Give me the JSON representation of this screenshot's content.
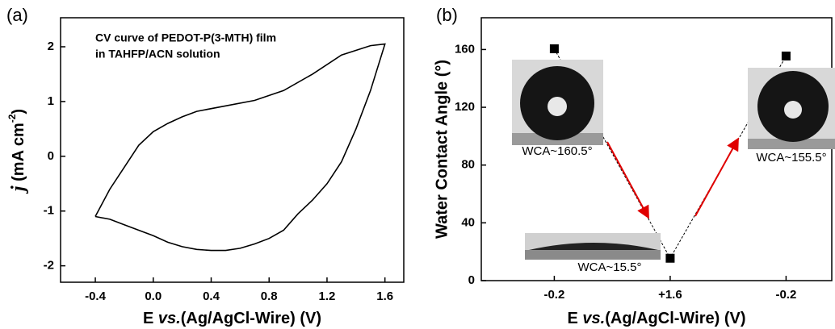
{
  "chart_data": [
    {
      "type": "line",
      "panel_label": "(a)",
      "annotations": [
        "CV curve of PEDOT-P(3-MTH) film",
        "in TAHFP/ACN solution"
      ],
      "xlabel": [
        "E ",
        "vs.",
        "(Ag/AgCl-Wire) (V)"
      ],
      "ylabel": [
        "j",
        " (mA cm",
        "-2",
        ")"
      ],
      "x": [
        -0.4,
        -0.3,
        -0.2,
        -0.1,
        0,
        0.1,
        0.2,
        0.3,
        0.5,
        0.7,
        0.9,
        1.1,
        1.3,
        1.5,
        1.6,
        1.5,
        1.4,
        1.3,
        1.2,
        1.1,
        1.0,
        0.95,
        0.9,
        0.8,
        0.7,
        0.6,
        0.5,
        0.4,
        0.3,
        0.2,
        0.1,
        0,
        -0.1,
        -0.2,
        -0.3,
        -0.4
      ],
      "series": [
        {
          "color": "#000000",
          "values": [
            -1.1,
            -0.6,
            -0.2,
            0.2,
            0.45,
            0.6,
            0.72,
            0.82,
            0.92,
            1.02,
            1.2,
            1.5,
            1.85,
            2.02,
            2.05,
            1.2,
            0.5,
            -0.1,
            -0.5,
            -0.8,
            -1.05,
            -1.2,
            -1.35,
            -1.5,
            -1.6,
            -1.68,
            -1.72,
            -1.72,
            -1.7,
            -1.65,
            -1.57,
            -1.45,
            -1.35,
            -1.25,
            -1.15,
            -1.1
          ]
        }
      ],
      "xlim": [
        -0.64,
        1.73
      ],
      "xticks": [
        -0.4,
        {
          "value": 0,
          "label": "0.0"
        },
        0.4,
        0.8,
        1.2,
        1.6
      ],
      "ylim": [
        -2.3,
        2.53
      ],
      "yticks": [
        -2,
        -1,
        0,
        1,
        2
      ]
    },
    {
      "type": "scatter",
      "panel_label": "(b)",
      "xlabel": [
        "E ",
        "vs.",
        "(Ag/AgCl-Wire) (V)"
      ],
      "ylabel": "Water Contact Angle (°)",
      "categories": [
        "-0.2",
        "+1.6",
        "-0.2"
      ],
      "values": [
        160.5,
        15.5,
        155.5
      ],
      "value_labels": [
        "WCA~160.5°",
        "WCA~15.5°",
        "WCA~155.5°"
      ],
      "color": "#000000",
      "ylim": [
        0,
        182
      ],
      "yticks": [
        0,
        40,
        80,
        120,
        160
      ]
    }
  ]
}
